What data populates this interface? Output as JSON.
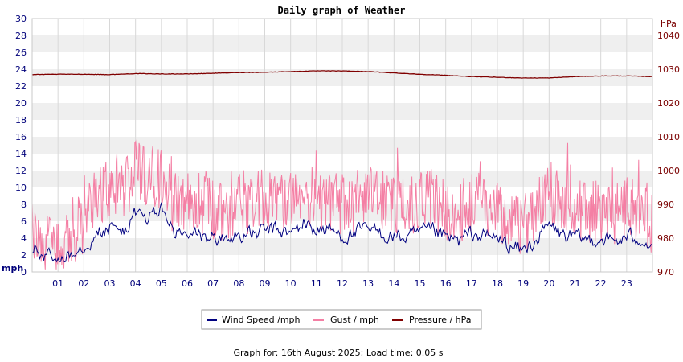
{
  "chart_data": {
    "type": "line",
    "title": "Daily graph of Weather",
    "left_axis": {
      "unit": "mph",
      "range": [
        0,
        30
      ],
      "ticks": [
        "0",
        "2",
        "4",
        "6",
        "8",
        "10",
        "12",
        "14",
        "16",
        "18",
        "20",
        "22",
        "24",
        "26",
        "28",
        "30"
      ]
    },
    "right_axis": {
      "unit": "hPa",
      "range": [
        970,
        1045
      ],
      "ticks": [
        "970",
        "980",
        "990",
        "1000",
        "1010",
        "1020",
        "1030",
        "1040"
      ]
    },
    "x_axis": {
      "range": [
        0,
        24
      ],
      "tick_labels": [
        "01",
        "02",
        "03",
        "04",
        "05",
        "06",
        "07",
        "08",
        "09",
        "10",
        "11",
        "12",
        "13",
        "14",
        "15",
        "16",
        "17",
        "18",
        "19",
        "20",
        "21",
        "22",
        "23"
      ]
    },
    "grid": true,
    "series": [
      {
        "name": "Wind Speed /mph",
        "color": "#000080",
        "axis": "left",
        "x": [
          0,
          0.5,
          1,
          1.5,
          2,
          2.5,
          3,
          3.5,
          4,
          4.5,
          5,
          5.5,
          6,
          6.5,
          7,
          7.5,
          8,
          8.5,
          9,
          9.5,
          10,
          10.5,
          11,
          11.5,
          12,
          12.5,
          13,
          13.5,
          14,
          14.5,
          15,
          15.5,
          16,
          16.5,
          17,
          17.5,
          18,
          18.5,
          19,
          19.5,
          20,
          20.5,
          21,
          21.5,
          22,
          22.5,
          23,
          23.5,
          24
        ],
        "values": [
          2.8,
          1.8,
          1.5,
          2.5,
          3.2,
          4.5,
          5.2,
          4.8,
          6.8,
          6.5,
          7.5,
          4.5,
          4.2,
          4.3,
          4.0,
          3.8,
          4.5,
          4.4,
          4.8,
          5.0,
          4.4,
          5.8,
          5.0,
          5.0,
          4.2,
          4.6,
          5.0,
          4.5,
          4.2,
          4.0,
          4.5,
          4.8,
          4.0,
          3.6,
          4.5,
          4.2,
          4.0,
          3.0,
          2.5,
          3.8,
          5.5,
          4.4,
          4.0,
          3.8,
          4.0,
          3.6,
          4.0,
          4.2,
          3.0
        ]
      },
      {
        "name": "Gust / mph",
        "color": "#f47fa4",
        "axis": "left",
        "x": [
          0,
          0.5,
          1,
          1.5,
          2,
          2.5,
          3,
          3.5,
          4,
          4.5,
          5,
          5.5,
          6,
          6.5,
          7,
          7.5,
          8,
          8.5,
          9,
          9.5,
          10,
          10.5,
          11,
          11.5,
          12,
          12.5,
          13,
          13.5,
          14,
          14.5,
          15,
          15.5,
          16,
          16.5,
          17,
          17.5,
          18,
          18.5,
          19,
          19.5,
          20,
          20.5,
          21,
          21.5,
          22,
          22.5,
          23,
          23.5,
          24
        ],
        "values": [
          4.5,
          3.0,
          3.0,
          4.0,
          6.0,
          8.5,
          10.0,
          9.0,
          12.0,
          11.5,
          11.0,
          8.0,
          8.0,
          8.0,
          7.5,
          7.0,
          8.0,
          8.0,
          8.5,
          8.5,
          8.0,
          9.5,
          8.5,
          8.5,
          8.0,
          8.5,
          9.0,
          8.5,
          8.0,
          7.5,
          8.5,
          9.0,
          7.5,
          7.0,
          8.0,
          8.0,
          7.5,
          6.0,
          5.5,
          7.0,
          9.5,
          8.0,
          7.5,
          7.0,
          7.5,
          7.0,
          7.5,
          7.5,
          5.5
        ]
      },
      {
        "name": "Pressure / hPa",
        "color": "#800000",
        "axis": "right",
        "x": [
          0,
          1,
          2,
          3,
          4,
          5,
          6,
          7,
          8,
          9,
          10,
          11,
          12,
          13,
          14,
          15,
          16,
          17,
          18,
          19,
          20,
          21,
          22,
          23,
          24
        ],
        "values": [
          1028.4,
          1028.5,
          1028.5,
          1028.4,
          1028.7,
          1028.6,
          1028.6,
          1028.8,
          1029.0,
          1029.1,
          1029.3,
          1029.5,
          1029.5,
          1029.3,
          1028.9,
          1028.5,
          1028.2,
          1027.8,
          1027.6,
          1027.4,
          1027.4,
          1027.8,
          1028.0,
          1028.0,
          1027.8
        ]
      }
    ],
    "legend": [
      {
        "label": "Wind Speed /mph",
        "color": "#000080"
      },
      {
        "label": "Gust / mph",
        "color": "#f47fa4"
      },
      {
        "label": "Pressure / hPa",
        "color": "#800000"
      }
    ],
    "legend_position": "bottom-center"
  },
  "footer": {
    "text": "Graph for: 16th August 2025; Load time: 0.05 s"
  }
}
